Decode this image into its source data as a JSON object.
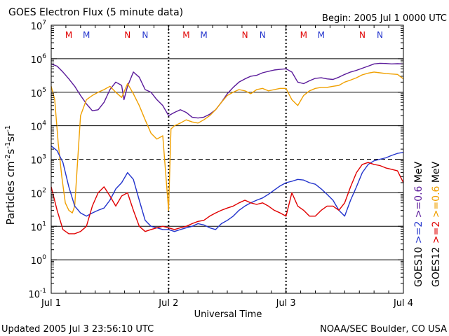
{
  "header": {
    "title": "GOES Electron Flux (5 minute data)",
    "begin": "Begin: 2005 Jul 1 0000 UTC"
  },
  "footer": {
    "updated": "Updated 2005 Jul  3 23:56:10 UTC",
    "credit": "NOAA/SEC Boulder, CO USA"
  },
  "chart_data": {
    "type": "line",
    "title": "GOES Electron Flux (5 minute data)",
    "xlabel": "Universal Time",
    "ylabel": "Particles cm-2s-1sr-1",
    "yscale": "log",
    "ylim": [
      0.1,
      10000000
    ],
    "xlim": [
      0,
      3
    ],
    "x_unit": "days since 2005 Jul 1 00:00 UTC",
    "x_tick_labels": [
      "Jul 1",
      "Jul 2",
      "Jul 3",
      "Jul 4"
    ],
    "y_tick_labels": [
      "10-1",
      "100",
      "101",
      "102",
      "103",
      "104",
      "105",
      "106",
      "107"
    ],
    "grid": true,
    "threshold_line": 1000,
    "day_boundaries": [
      1,
      2
    ],
    "local_time_markers": [
      {
        "label": "M",
        "x": 0.15,
        "color": "#e00000"
      },
      {
        "label": "M",
        "x": 0.3,
        "color": "#2233cc"
      },
      {
        "label": "N",
        "x": 0.65,
        "color": "#e00000"
      },
      {
        "label": "N",
        "x": 0.8,
        "color": "#2233cc"
      },
      {
        "label": "M",
        "x": 1.15,
        "color": "#e00000"
      },
      {
        "label": "M",
        "x": 1.3,
        "color": "#2233cc"
      },
      {
        "label": "N",
        "x": 1.65,
        "color": "#e00000"
      },
      {
        "label": "N",
        "x": 1.8,
        "color": "#2233cc"
      },
      {
        "label": "M",
        "x": 2.15,
        "color": "#e00000"
      },
      {
        "label": "M",
        "x": 2.3,
        "color": "#2233cc"
      },
      {
        "label": "N",
        "x": 2.65,
        "color": "#e00000"
      },
      {
        "label": "N",
        "x": 2.8,
        "color": "#2233cc"
      }
    ],
    "legend": {
      "placement": "right",
      "groups": [
        {
          "satellite": "GOES10",
          "label_2": ">=2",
          "label_06": ">=0.6",
          "color_2": "#2233cc",
          "color_06": "#5a1a9a"
        },
        {
          "satellite": "GOES12",
          "label_2": ">=2",
          "label_06": ">=0.6",
          "color_2": "#e00000",
          "color_06": "#f0a000"
        }
      ],
      "unit": "MeV"
    },
    "series": [
      {
        "name": "GOES10 >=0.6 MeV",
        "color": "#5a1a9a",
        "x": [
          0,
          0.05,
          0.1,
          0.15,
          0.2,
          0.25,
          0.3,
          0.35,
          0.4,
          0.45,
          0.5,
          0.55,
          0.6,
          0.62,
          0.65,
          0.7,
          0.75,
          0.8,
          0.85,
          0.9,
          0.95,
          1.0,
          1.05,
          1.1,
          1.15,
          1.2,
          1.25,
          1.3,
          1.35,
          1.4,
          1.45,
          1.5,
          1.55,
          1.6,
          1.65,
          1.7,
          1.75,
          1.8,
          1.85,
          1.9,
          1.95,
          2.0,
          2.05,
          2.1,
          2.15,
          2.2,
          2.25,
          2.3,
          2.35,
          2.4,
          2.45,
          2.5,
          2.55,
          2.6,
          2.65,
          2.7,
          2.75,
          2.8,
          2.85,
          2.9,
          2.95,
          3.0
        ],
        "y": [
          700000,
          600000,
          400000,
          250000,
          150000,
          80000,
          45000,
          28000,
          30000,
          50000,
          120000,
          200000,
          160000,
          60000,
          150000,
          400000,
          280000,
          120000,
          100000,
          60000,
          40000,
          20000,
          25000,
          30000,
          25000,
          18000,
          17000,
          18000,
          22000,
          30000,
          50000,
          90000,
          140000,
          200000,
          250000,
          300000,
          320000,
          380000,
          420000,
          460000,
          480000,
          500000,
          400000,
          200000,
          180000,
          220000,
          260000,
          270000,
          250000,
          240000,
          280000,
          340000,
          400000,
          450000,
          520000,
          600000,
          700000,
          730000,
          720000,
          700000,
          710000,
          700000
        ]
      },
      {
        "name": "GOES12 >=0.6 MeV",
        "color": "#f0a000",
        "x": [
          0,
          0.03,
          0.06,
          0.09,
          0.12,
          0.15,
          0.18,
          0.2,
          0.25,
          0.3,
          0.35,
          0.4,
          0.45,
          0.5,
          0.55,
          0.6,
          0.65,
          0.7,
          0.75,
          0.8,
          0.85,
          0.9,
          0.95,
          1.0,
          1.02,
          1.05,
          1.1,
          1.15,
          1.2,
          1.25,
          1.3,
          1.35,
          1.4,
          1.45,
          1.5,
          1.55,
          1.6,
          1.65,
          1.7,
          1.75,
          1.8,
          1.85,
          1.9,
          1.95,
          2.0,
          2.05,
          2.1,
          2.15,
          2.2,
          2.25,
          2.3,
          2.35,
          2.4,
          2.45,
          2.5,
          2.55,
          2.6,
          2.65,
          2.7,
          2.75,
          2.8,
          2.85,
          2.9,
          2.95,
          3.0
        ],
        "y": [
          150000,
          60000,
          3000,
          300,
          50,
          30,
          25,
          40,
          20000,
          60000,
          80000,
          100000,
          120000,
          150000,
          100000,
          70000,
          180000,
          90000,
          40000,
          15000,
          6000,
          4000,
          5000,
          30,
          8000,
          10000,
          12000,
          15000,
          13000,
          12000,
          15000,
          20000,
          30000,
          50000,
          80000,
          100000,
          120000,
          110000,
          90000,
          120000,
          130000,
          110000,
          120000,
          130000,
          130000,
          60000,
          40000,
          80000,
          110000,
          130000,
          140000,
          140000,
          150000,
          160000,
          200000,
          230000,
          270000,
          330000,
          370000,
          400000,
          380000,
          360000,
          350000,
          340000,
          250000
        ]
      },
      {
        "name": "GOES10 >=2 MeV",
        "color": "#2233cc",
        "x": [
          0,
          0.05,
          0.1,
          0.15,
          0.2,
          0.25,
          0.3,
          0.35,
          0.4,
          0.45,
          0.5,
          0.55,
          0.6,
          0.65,
          0.7,
          0.75,
          0.8,
          0.85,
          0.9,
          0.95,
          1.0,
          1.05,
          1.1,
          1.15,
          1.2,
          1.25,
          1.3,
          1.35,
          1.4,
          1.45,
          1.5,
          1.55,
          1.6,
          1.65,
          1.7,
          1.75,
          1.8,
          1.85,
          1.9,
          1.95,
          2.0,
          2.05,
          2.1,
          2.15,
          2.2,
          2.25,
          2.3,
          2.35,
          2.4,
          2.45,
          2.5,
          2.55,
          2.6,
          2.65,
          2.7,
          2.75,
          2.8,
          2.85,
          2.9,
          2.95,
          3.0
        ],
        "y": [
          2500,
          1800,
          800,
          150,
          40,
          25,
          20,
          25,
          30,
          35,
          60,
          130,
          200,
          400,
          250,
          60,
          15,
          10,
          9,
          8,
          8,
          7,
          8,
          9,
          10,
          12,
          11,
          9,
          8,
          12,
          15,
          20,
          30,
          40,
          50,
          60,
          70,
          90,
          120,
          160,
          200,
          220,
          250,
          240,
          200,
          180,
          130,
          90,
          60,
          30,
          20,
          60,
          150,
          400,
          700,
          900,
          1000,
          1100,
          1300,
          1500,
          1600
        ]
      },
      {
        "name": "GOES12 >=2 MeV",
        "color": "#e00000",
        "x": [
          0,
          0.05,
          0.1,
          0.15,
          0.2,
          0.25,
          0.3,
          0.35,
          0.4,
          0.45,
          0.5,
          0.55,
          0.6,
          0.65,
          0.7,
          0.75,
          0.8,
          0.85,
          0.9,
          0.95,
          1.0,
          1.05,
          1.1,
          1.15,
          1.2,
          1.25,
          1.3,
          1.35,
          1.4,
          1.45,
          1.5,
          1.55,
          1.6,
          1.65,
          1.7,
          1.75,
          1.8,
          1.85,
          1.9,
          1.95,
          2.0,
          2.05,
          2.1,
          2.15,
          2.2,
          2.25,
          2.3,
          2.35,
          2.4,
          2.45,
          2.5,
          2.55,
          2.6,
          2.65,
          2.7,
          2.75,
          2.8,
          2.85,
          2.9,
          2.95,
          3.0
        ],
        "y": [
          150,
          30,
          8,
          6,
          6,
          7,
          10,
          40,
          100,
          150,
          80,
          40,
          80,
          100,
          30,
          10,
          7,
          8,
          9,
          10,
          9,
          8,
          9,
          10,
          12,
          14,
          15,
          20,
          25,
          30,
          35,
          40,
          50,
          60,
          50,
          45,
          50,
          40,
          30,
          25,
          20,
          100,
          40,
          30,
          20,
          20,
          30,
          40,
          40,
          30,
          50,
          150,
          400,
          700,
          800,
          700,
          650,
          550,
          500,
          450,
          200
        ]
      }
    ]
  }
}
